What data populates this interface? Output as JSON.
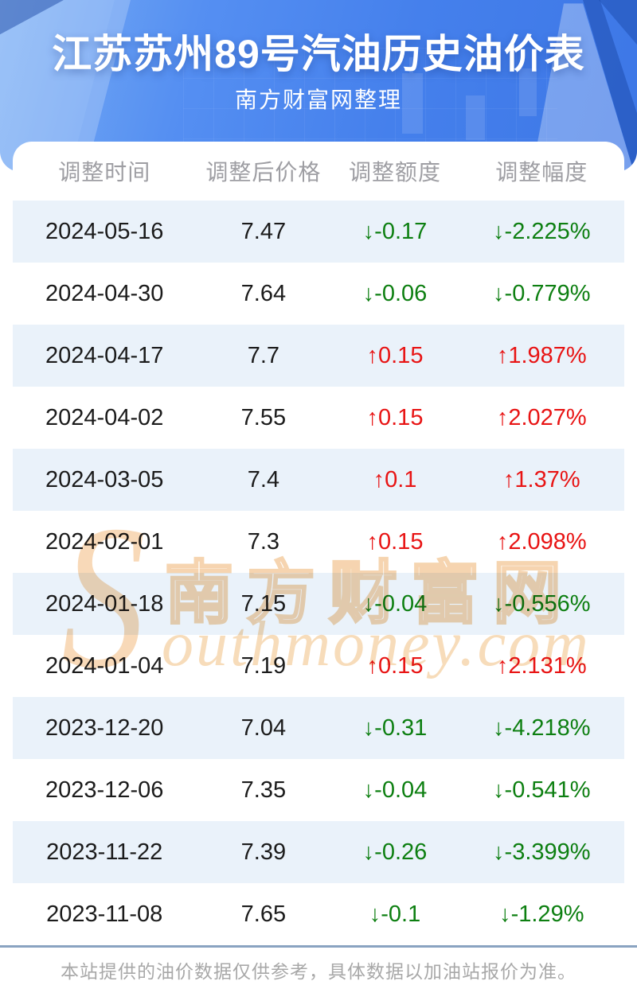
{
  "header": {
    "title": "江苏苏州89号汽油历史油价表",
    "subtitle": "南方财富网整理"
  },
  "chart_data": {
    "type": "table",
    "title": "江苏苏州89号汽油历史油价表",
    "subtitle": "南方财富网整理",
    "columns": [
      "调整时间",
      "调整后价格",
      "调整额度",
      "调整幅度"
    ],
    "rows": [
      [
        "2024-05-16",
        "7.47",
        "-0.17",
        "-2.225%"
      ],
      [
        "2024-04-30",
        "7.64",
        "-0.06",
        "-0.779%"
      ],
      [
        "2024-04-17",
        "7.7",
        "0.15",
        "1.987%"
      ],
      [
        "2024-04-02",
        "7.55",
        "0.15",
        "2.027%"
      ],
      [
        "2024-03-05",
        "7.4",
        "0.1",
        "1.37%"
      ],
      [
        "2024-02-01",
        "7.3",
        "0.15",
        "2.098%"
      ],
      [
        "2024-01-18",
        "7.15",
        "-0.04",
        "-0.556%"
      ],
      [
        "2024-01-04",
        "7.19",
        "0.15",
        "2.131%"
      ],
      [
        "2023-12-20",
        "7.04",
        "-0.31",
        "-4.218%"
      ],
      [
        "2023-12-06",
        "7.35",
        "-0.04",
        "-0.541%"
      ],
      [
        "2023-11-22",
        "7.39",
        "-0.26",
        "-3.399%"
      ],
      [
        "2023-11-08",
        "7.65",
        "-0.1",
        "-1.29%"
      ]
    ]
  },
  "icons": {
    "up_arrow": "↑",
    "down_arrow": "↓"
  },
  "colors": {
    "up": "#e81414",
    "down": "#0d7f11",
    "accent_blue": "#4580ec",
    "row_alt": "#eaf2fa",
    "header_text": "#9e9ea3",
    "watermark_orange": "#f0ad66"
  },
  "watermark": {
    "s": "S",
    "cn": "南方财富网",
    "en": "outhmoney.com"
  },
  "footer": {
    "note": "本站提供的油价数据仅供参考，具体数据以加油站报价为准。"
  }
}
